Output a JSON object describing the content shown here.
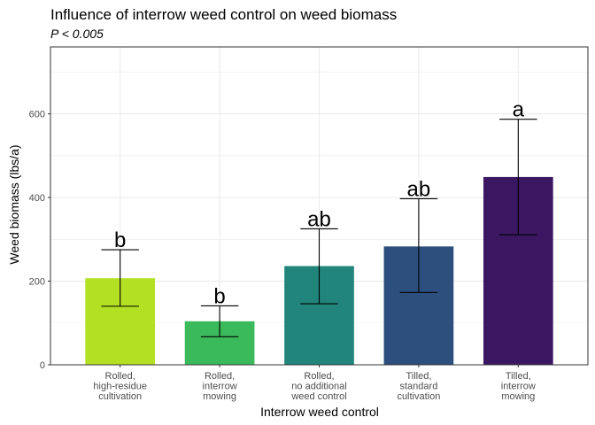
{
  "chart_data": {
    "type": "bar",
    "title": "Influence of interrow weed control on weed biomass",
    "subtitle": "P < 0.005",
    "xlabel": "Interrow weed control",
    "ylabel": "Weed biomass (lbs/a)",
    "ylim": [
      0,
      760
    ],
    "yticks": [
      0,
      200,
      400,
      600
    ],
    "grid": true,
    "legend": "none",
    "categories": [
      [
        "Rolled,",
        "high-residue",
        "cultivation"
      ],
      [
        "Rolled,",
        "interrow",
        "mowing"
      ],
      [
        "Rolled,",
        "no additional",
        "weed control"
      ],
      [
        "Tilled,",
        "standard",
        "cultivation"
      ],
      [
        "Tilled,",
        "interrow",
        "mowing"
      ]
    ],
    "values": [
      207,
      104,
      236,
      283,
      449
    ],
    "error_low": [
      140,
      67,
      146,
      173,
      311
    ],
    "error_high": [
      275,
      141,
      325,
      397,
      587
    ],
    "significance_letters": [
      "b",
      "b",
      "ab",
      "ab",
      "a"
    ],
    "colors": [
      "#b3e022",
      "#3bba5c",
      "#21857c",
      "#2c4f7e",
      "#3a1760"
    ]
  }
}
